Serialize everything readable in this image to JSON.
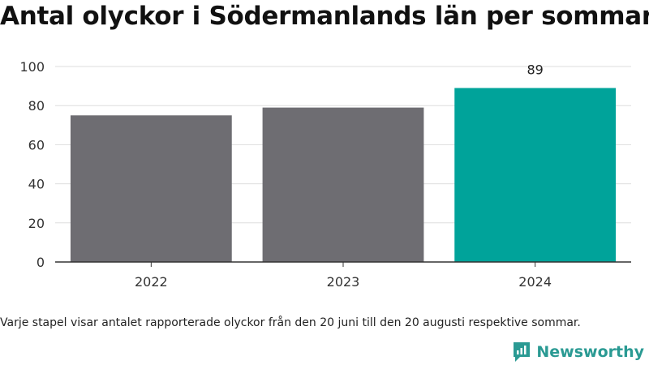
{
  "title": "Antal olyckor i Södermanlands län per sommar",
  "caption": "Varje stapel visar antalet rapporterade olyckor från den 20 juni till den 20 augusti respektive sommar.",
  "brand": {
    "name": "Newsworthy",
    "icon": "newsworthy-logo-icon",
    "color": "#2a9a93"
  },
  "colors": {
    "default_bar": "#6e6d72",
    "highlight_bar": "#00a39a",
    "grid": "#dddddd",
    "axis": "#333333"
  },
  "chart_data": {
    "type": "bar",
    "title": "Antal olyckor i Södermanlands län per sommar",
    "xlabel": "",
    "ylabel": "",
    "categories": [
      "2022",
      "2023",
      "2024"
    ],
    "values": [
      75,
      79,
      89
    ],
    "ylim": [
      0,
      100
    ],
    "yticks": [
      0,
      20,
      40,
      60,
      80,
      100
    ],
    "highlight_index": 2,
    "data_labels": [
      null,
      null,
      "89"
    ],
    "grid": true,
    "legend": "none"
  }
}
